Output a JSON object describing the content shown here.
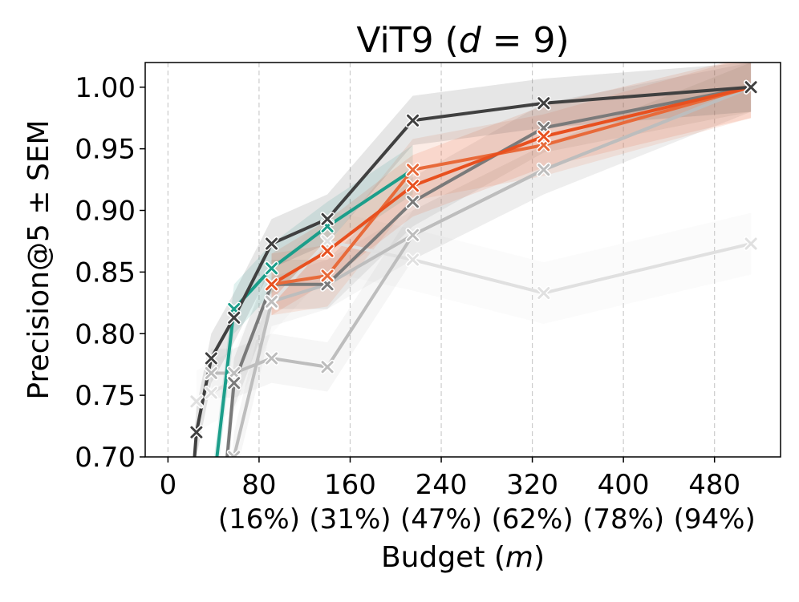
{
  "chart_data": {
    "type": "line",
    "title": "ViT9 (d = 9)",
    "title_parts": {
      "prefix": "ViT9 (",
      "var": "d",
      "suffix": " = 9)"
    },
    "xlabel": "Budget (m)",
    "xlabel_parts": {
      "prefix": "Budget (",
      "var": "m",
      "suffix": ")"
    },
    "ylabel": "Precision@5 ± SEM",
    "xlim": [
      -20,
      538
    ],
    "ylim": [
      0.7,
      1.02
    ],
    "grid": {
      "x": true,
      "y": false
    },
    "x_ticks": [
      0,
      80,
      160,
      240,
      320,
      400,
      480
    ],
    "x_tick_labels": [
      "0",
      "80",
      "160",
      "240",
      "320",
      "400",
      "480"
    ],
    "x_tick_sublabels": [
      "",
      "(16%)",
      "(31%)",
      "(47%)",
      "(62%)",
      "(78%)",
      "(94%)"
    ],
    "y_ticks": [
      0.7,
      0.75,
      0.8,
      0.85,
      0.9,
      0.95,
      1.0
    ],
    "y_tick_labels": [
      "0.70",
      "0.75",
      "0.80",
      "0.85",
      "0.90",
      "0.95",
      "1.00"
    ],
    "series": [
      {
        "color": "#e0e0e0",
        "band": 0.025,
        "x": [
          25,
          38,
          58,
          91,
          140,
          215,
          330,
          512
        ],
        "y": [
          0.745,
          0.752,
          0.762,
          0.825,
          0.875,
          0.86,
          0.833,
          0.873
        ]
      },
      {
        "color": "#bdbdbd",
        "band": 0.02,
        "x": [
          38,
          58,
          91,
          140,
          215,
          330,
          512
        ],
        "y": [
          0.768,
          0.768,
          0.78,
          0.773,
          0.88,
          0.933,
          1.0
        ]
      },
      {
        "color": "#bdbdbd",
        "band": 0.02,
        "x": [
          50,
          58,
          91,
          140,
          215,
          330,
          512
        ],
        "y": [
          0.6,
          0.7,
          0.826,
          0.84,
          0.88,
          0.933,
          1.0
        ]
      },
      {
        "color": "#7a7a7a",
        "band": 0.02,
        "x": [
          50,
          58,
          91,
          140,
          215,
          330,
          512
        ],
        "y": [
          0.68,
          0.76,
          0.84,
          0.84,
          0.907,
          0.967,
          1.0
        ]
      },
      {
        "color": "#1b9e8a",
        "band": 0.02,
        "x": [
          38,
          58,
          91,
          140,
          215
        ],
        "y": [
          0.66,
          0.82,
          0.853,
          0.887,
          0.933
        ]
      },
      {
        "color": "#e86a3a",
        "band": 0.025,
        "x": [
          91,
          140,
          215,
          330,
          512
        ],
        "y": [
          0.84,
          0.847,
          0.933,
          0.953,
          1.0
        ]
      },
      {
        "color": "#e8501f",
        "band": 0.025,
        "x": [
          91,
          140,
          215,
          330,
          512
        ],
        "y": [
          0.84,
          0.867,
          0.92,
          0.96,
          1.0
        ]
      },
      {
        "color": "#404040",
        "band": 0.02,
        "x": [
          20,
          25,
          38,
          58,
          91,
          140,
          215,
          330,
          512
        ],
        "y": [
          0.66,
          0.72,
          0.78,
          0.813,
          0.873,
          0.893,
          0.973,
          0.987,
          1.0
        ]
      }
    ]
  }
}
